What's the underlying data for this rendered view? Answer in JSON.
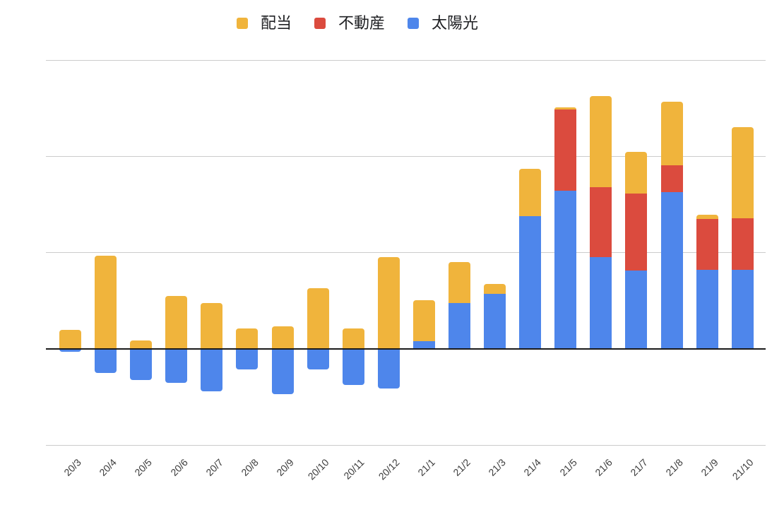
{
  "legend": {
    "position": "top",
    "items": [
      {
        "label": "配当",
        "color": "#F0B43C"
      },
      {
        "label": "不動産",
        "color": "#DB4B3E"
      },
      {
        "label": "太陽光",
        "color": "#4E86EB"
      }
    ]
  },
  "chart_data": {
    "type": "bar",
    "stacked": true,
    "title": "",
    "xlabel": "",
    "ylabel": "",
    "y_axis_labels_visible": false,
    "value_unit_note": "y-axis is unlabeled; values are relative units where 1.0 = one gridline interval",
    "ylim": [
      -1,
      3
    ],
    "gridline_values": [
      3,
      2,
      1,
      0,
      -1
    ],
    "zero_line_emphasized": true,
    "legend_position": "top",
    "grid_color": "#cccccc",
    "zero_line_color": "#1a1a1a",
    "x_label_color": "#3c3c3c",
    "categories": [
      "20/3",
      "20/4",
      "20/5",
      "20/6",
      "20/7",
      "20/8",
      "20/9",
      "20/10",
      "20/11",
      "20/12",
      "21/1",
      "21/2",
      "21/3",
      "21/4",
      "21/5",
      "21/6",
      "21/7",
      "21/8",
      "21/9",
      "21/10"
    ],
    "series": [
      {
        "name": "配当",
        "color": "#F0B43C",
        "values": [
          0.2,
          0.97,
          0.085,
          0.55,
          0.48,
          0.215,
          0.235,
          0.63,
          0.21,
          0.955,
          0.425,
          0.42,
          0.105,
          0.49,
          0.026,
          0.945,
          0.43,
          0.655,
          0.045,
          0.94
        ]
      },
      {
        "name": "不動産",
        "color": "#DB4B3E",
        "values": [
          0,
          0,
          0,
          0,
          0,
          0,
          0,
          0,
          0,
          0,
          0,
          0,
          0,
          0,
          0.845,
          0.73,
          0.8,
          0.28,
          0.525,
          0.535
        ]
      },
      {
        "name": "太陽光",
        "color": "#4E86EB",
        "values": [
          -0.033,
          -0.25,
          -0.32,
          -0.35,
          -0.44,
          -0.215,
          -0.47,
          -0.215,
          -0.375,
          -0.41,
          0.08,
          0.48,
          0.57,
          1.38,
          1.64,
          0.95,
          0.815,
          1.63,
          0.825,
          0.825
        ]
      }
    ]
  }
}
